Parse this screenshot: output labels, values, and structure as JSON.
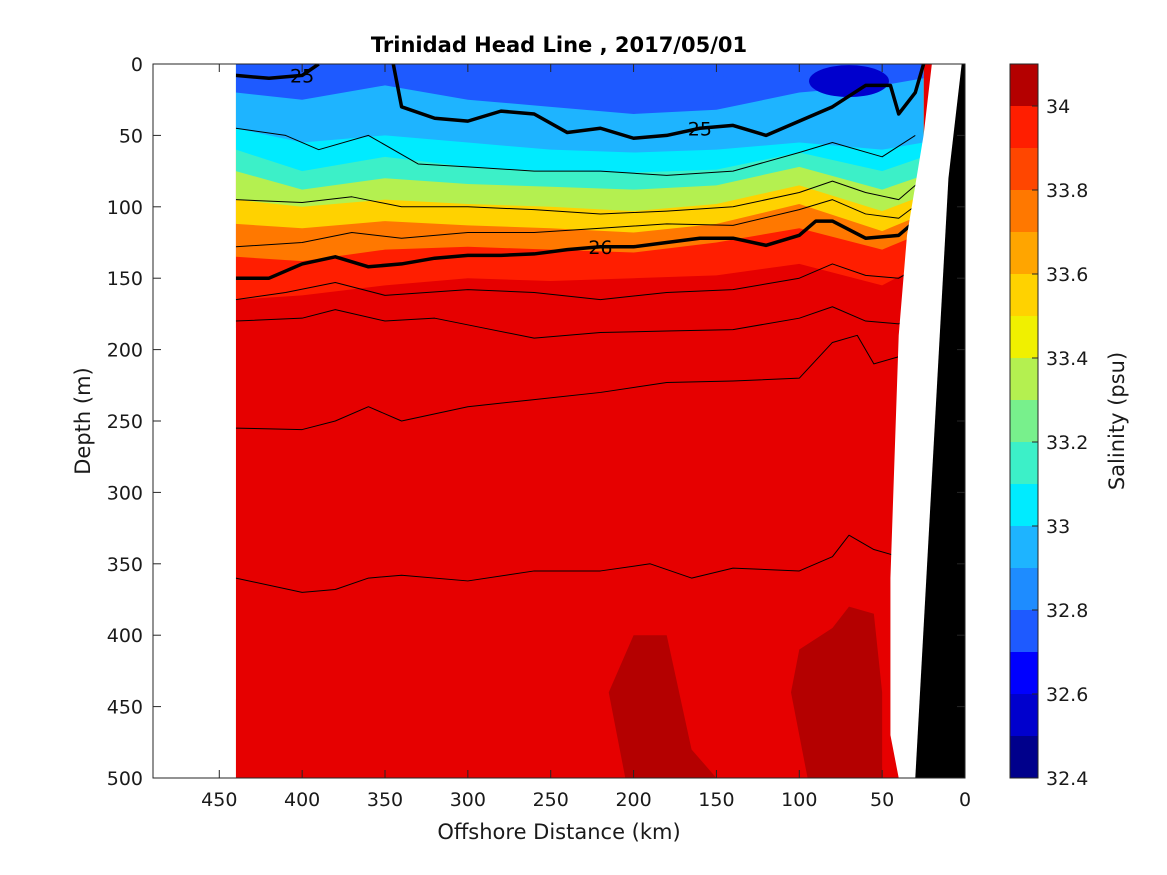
{
  "chart_data": {
    "type": "heatmap",
    "title": "Trinidad Head Line , 2017/05/01",
    "xlabel": "Offshore Distance (km)",
    "ylabel": "Depth (m)",
    "colorbar_label": "Salinity (psu)",
    "xlim": [
      490,
      0
    ],
    "ylim": [
      500,
      0
    ],
    "x_reversed": true,
    "y_reversed": true,
    "xticks": [
      450,
      400,
      350,
      300,
      250,
      200,
      150,
      100,
      50,
      0
    ],
    "yticks": [
      0,
      50,
      100,
      150,
      200,
      250,
      300,
      350,
      400,
      450,
      500
    ],
    "colorbar": {
      "min": 32.4,
      "max": 34.1,
      "tick_values": [
        32.4,
        32.6,
        32.8,
        33,
        33.2,
        33.4,
        33.6,
        33.8,
        34
      ],
      "tick_labels": [
        "32.4",
        "32.6",
        "32.8",
        "33",
        "33.2",
        "33.4",
        "33.6",
        "33.8",
        "34"
      ],
      "levels": [
        32.4,
        32.5,
        32.6,
        32.7,
        32.8,
        32.9,
        33.0,
        33.1,
        33.2,
        33.3,
        33.4,
        33.5,
        33.6,
        33.7,
        33.8,
        33.9,
        34.0,
        34.1
      ],
      "colors": [
        "#00008b",
        "#0000cd",
        "#0000ff",
        "#1e5aff",
        "#1e8cff",
        "#1eb4ff",
        "#00ebff",
        "#3cf0c8",
        "#78f08c",
        "#b4f050",
        "#f0f000",
        "#ffd200",
        "#ffa500",
        "#ff7800",
        "#ff4600",
        "#ff1e00",
        "#e60000",
        "#b40000"
      ]
    },
    "salinity_bands": [
      {
        "salinity": 32.7,
        "depth_boundary": [
          [
            440,
            20
          ],
          [
            400,
            25
          ],
          [
            350,
            15
          ],
          [
            300,
            25
          ],
          [
            250,
            30
          ],
          [
            200,
            35
          ],
          [
            150,
            32
          ],
          [
            100,
            20
          ],
          [
            50,
            15
          ],
          [
            25,
            10
          ]
        ]
      },
      {
        "salinity": 32.9,
        "depth_boundary": [
          [
            440,
            45
          ],
          [
            400,
            55
          ],
          [
            350,
            50
          ],
          [
            300,
            55
          ],
          [
            250,
            60
          ],
          [
            200,
            62
          ],
          [
            150,
            60
          ],
          [
            100,
            55
          ],
          [
            50,
            60
          ],
          [
            25,
            55
          ]
        ]
      },
      {
        "salinity": 33.0,
        "depth_boundary": [
          [
            440,
            60
          ],
          [
            400,
            75
          ],
          [
            350,
            65
          ],
          [
            300,
            72
          ],
          [
            250,
            75
          ],
          [
            200,
            76
          ],
          [
            150,
            74
          ],
          [
            100,
            62
          ],
          [
            50,
            75
          ],
          [
            25,
            65
          ]
        ]
      },
      {
        "salinity": 33.1,
        "depth_boundary": [
          [
            440,
            75
          ],
          [
            400,
            88
          ],
          [
            350,
            80
          ],
          [
            300,
            84
          ],
          [
            250,
            86
          ],
          [
            200,
            88
          ],
          [
            150,
            85
          ],
          [
            100,
            72
          ],
          [
            50,
            88
          ],
          [
            25,
            78
          ]
        ]
      },
      {
        "salinity": 33.3,
        "depth_boundary": [
          [
            440,
            95
          ],
          [
            400,
            100
          ],
          [
            350,
            95
          ],
          [
            300,
            98
          ],
          [
            250,
            100
          ],
          [
            200,
            103
          ],
          [
            150,
            98
          ],
          [
            100,
            85
          ],
          [
            50,
            103
          ],
          [
            25,
            92
          ]
        ]
      },
      {
        "salinity": 33.5,
        "depth_boundary": [
          [
            440,
            112
          ],
          [
            400,
            115
          ],
          [
            350,
            110
          ],
          [
            300,
            113
          ],
          [
            250,
            115
          ],
          [
            200,
            118
          ],
          [
            150,
            112
          ],
          [
            100,
            98
          ],
          [
            50,
            117
          ],
          [
            25,
            105
          ]
        ]
      },
      {
        "salinity": 33.7,
        "depth_boundary": [
          [
            440,
            135
          ],
          [
            400,
            138
          ],
          [
            350,
            130
          ],
          [
            300,
            128
          ],
          [
            250,
            130
          ],
          [
            200,
            132
          ],
          [
            150,
            125
          ],
          [
            100,
            115
          ],
          [
            50,
            130
          ],
          [
            25,
            118
          ]
        ]
      },
      {
        "salinity": 33.9,
        "depth_boundary": [
          [
            440,
            165
          ],
          [
            400,
            162
          ],
          [
            350,
            155
          ],
          [
            300,
            150
          ],
          [
            250,
            152
          ],
          [
            200,
            150
          ],
          [
            150,
            148
          ],
          [
            100,
            140
          ],
          [
            50,
            155
          ],
          [
            25,
            140
          ]
        ]
      },
      {
        "salinity": 34.0,
        "depth_boundary": [
          [
            440,
            185
          ],
          [
            400,
            180
          ],
          [
            350,
            178
          ],
          [
            300,
            185
          ],
          [
            250,
            195
          ],
          [
            200,
            190
          ],
          [
            150,
            188
          ],
          [
            100,
            178
          ],
          [
            50,
            185
          ],
          [
            25,
            170
          ]
        ]
      }
    ],
    "high_salinity_patches": [
      {
        "salinity": 34.05,
        "outline": [
          [
            440,
            500
          ],
          [
            440,
            445
          ],
          [
            400,
            420
          ],
          [
            360,
            430
          ],
          [
            330,
            405
          ],
          [
            280,
            410
          ],
          [
            260,
            390
          ],
          [
            240,
            350
          ],
          [
            230,
            275
          ],
          [
            210,
            265
          ],
          [
            190,
            255
          ],
          [
            170,
            270
          ],
          [
            160,
            320
          ],
          [
            140,
            310
          ],
          [
            110,
            270
          ],
          [
            90,
            225
          ],
          [
            70,
            215
          ],
          [
            50,
            285
          ],
          [
            35,
            250
          ],
          [
            35,
            470
          ],
          [
            40,
            500
          ]
        ]
      },
      {
        "salinity": 34.1,
        "outline": [
          [
            205,
            500
          ],
          [
            215,
            440
          ],
          [
            200,
            400
          ],
          [
            180,
            400
          ],
          [
            165,
            480
          ],
          [
            150,
            500
          ]
        ]
      },
      {
        "salinity": 34.1,
        "outline": [
          [
            95,
            500
          ],
          [
            105,
            440
          ],
          [
            100,
            410
          ],
          [
            80,
            395
          ],
          [
            70,
            380
          ],
          [
            55,
            385
          ],
          [
            50,
            440
          ],
          [
            50,
            500
          ]
        ]
      }
    ],
    "density_contours": [
      {
        "label": "25",
        "bold": true,
        "points": [
          [
            440,
            8
          ],
          [
            420,
            10
          ],
          [
            400,
            8
          ],
          [
            390,
            0
          ]
        ]
      },
      {
        "label": "25",
        "bold": true,
        "points": [
          [
            345,
            0
          ],
          [
            340,
            30
          ],
          [
            320,
            38
          ],
          [
            300,
            40
          ],
          [
            280,
            33
          ],
          [
            260,
            35
          ],
          [
            240,
            48
          ],
          [
            220,
            45
          ],
          [
            200,
            52
          ],
          [
            180,
            50
          ],
          [
            160,
            45
          ],
          [
            140,
            43
          ],
          [
            120,
            50
          ],
          [
            100,
            40
          ],
          [
            80,
            30
          ],
          [
            60,
            15
          ],
          [
            45,
            15
          ],
          [
            40,
            35
          ],
          [
            30,
            20
          ],
          [
            25,
            0
          ]
        ]
      },
      {
        "label": "26",
        "bold": true,
        "points": [
          [
            440,
            150
          ],
          [
            420,
            150
          ],
          [
            400,
            140
          ],
          [
            380,
            135
          ],
          [
            360,
            142
          ],
          [
            340,
            140
          ],
          [
            320,
            136
          ],
          [
            300,
            134
          ],
          [
            280,
            134
          ],
          [
            260,
            133
          ],
          [
            240,
            130
          ],
          [
            220,
            128
          ],
          [
            200,
            128
          ],
          [
            180,
            125
          ],
          [
            160,
            122
          ],
          [
            140,
            122
          ],
          [
            120,
            127
          ],
          [
            100,
            120
          ],
          [
            90,
            110
          ],
          [
            80,
            110
          ],
          [
            60,
            122
          ],
          [
            40,
            120
          ],
          [
            25,
            105
          ]
        ]
      },
      {
        "label": "",
        "bold": false,
        "points": [
          [
            440,
            45
          ],
          [
            410,
            50
          ],
          [
            390,
            60
          ],
          [
            360,
            50
          ],
          [
            330,
            70
          ],
          [
            300,
            72
          ],
          [
            260,
            75
          ],
          [
            220,
            75
          ],
          [
            180,
            78
          ],
          [
            140,
            75
          ],
          [
            100,
            62
          ],
          [
            80,
            55
          ],
          [
            50,
            65
          ],
          [
            30,
            50
          ]
        ]
      },
      {
        "label": "",
        "bold": false,
        "points": [
          [
            440,
            95
          ],
          [
            400,
            97
          ],
          [
            370,
            93
          ],
          [
            340,
            100
          ],
          [
            300,
            100
          ],
          [
            260,
            102
          ],
          [
            220,
            105
          ],
          [
            180,
            103
          ],
          [
            140,
            100
          ],
          [
            100,
            90
          ],
          [
            80,
            82
          ],
          [
            60,
            90
          ],
          [
            40,
            95
          ],
          [
            25,
            80
          ]
        ]
      },
      {
        "label": "",
        "bold": false,
        "points": [
          [
            440,
            128
          ],
          [
            400,
            125
          ],
          [
            370,
            118
          ],
          [
            340,
            122
          ],
          [
            300,
            118
          ],
          [
            260,
            118
          ],
          [
            220,
            115
          ],
          [
            180,
            112
          ],
          [
            140,
            113
          ],
          [
            100,
            102
          ],
          [
            80,
            95
          ],
          [
            60,
            105
          ],
          [
            40,
            108
          ],
          [
            25,
            95
          ]
        ]
      },
      {
        "label": "",
        "bold": false,
        "points": [
          [
            440,
            165
          ],
          [
            410,
            160
          ],
          [
            380,
            153
          ],
          [
            350,
            162
          ],
          [
            300,
            158
          ],
          [
            260,
            160
          ],
          [
            220,
            165
          ],
          [
            180,
            160
          ],
          [
            140,
            158
          ],
          [
            100,
            150
          ],
          [
            80,
            140
          ],
          [
            60,
            148
          ],
          [
            40,
            150
          ],
          [
            25,
            140
          ]
        ]
      },
      {
        "label": "",
        "bold": false,
        "points": [
          [
            440,
            180
          ],
          [
            400,
            178
          ],
          [
            380,
            172
          ],
          [
            350,
            180
          ],
          [
            320,
            178
          ],
          [
            290,
            185
          ],
          [
            260,
            192
          ],
          [
            220,
            188
          ],
          [
            180,
            187
          ],
          [
            140,
            186
          ],
          [
            100,
            178
          ],
          [
            80,
            170
          ],
          [
            60,
            180
          ],
          [
            40,
            182
          ],
          [
            25,
            170
          ]
        ]
      },
      {
        "label": "",
        "bold": false,
        "points": [
          [
            440,
            255
          ],
          [
            400,
            256
          ],
          [
            380,
            250
          ],
          [
            360,
            240
          ],
          [
            340,
            250
          ],
          [
            300,
            240
          ],
          [
            260,
            235
          ],
          [
            220,
            230
          ],
          [
            180,
            223
          ],
          [
            140,
            222
          ],
          [
            100,
            220
          ],
          [
            80,
            195
          ],
          [
            65,
            190
          ],
          [
            55,
            210
          ],
          [
            40,
            205
          ],
          [
            30,
            200
          ]
        ]
      },
      {
        "label": "",
        "bold": false,
        "points": [
          [
            440,
            360
          ],
          [
            400,
            370
          ],
          [
            380,
            368
          ],
          [
            360,
            360
          ],
          [
            340,
            358
          ],
          [
            300,
            362
          ],
          [
            260,
            355
          ],
          [
            220,
            355
          ],
          [
            190,
            350
          ],
          [
            165,
            360
          ],
          [
            140,
            353
          ],
          [
            100,
            355
          ],
          [
            80,
            345
          ],
          [
            70,
            330
          ],
          [
            55,
            340
          ],
          [
            40,
            345
          ]
        ]
      }
    ],
    "bathymetry": [
      [
        20,
        0
      ],
      [
        25,
        50
      ],
      [
        35,
        120
      ],
      [
        40,
        190
      ],
      [
        45,
        360
      ],
      [
        45,
        470
      ],
      [
        40,
        500
      ],
      [
        0,
        500
      ],
      [
        0,
        0
      ]
    ]
  }
}
